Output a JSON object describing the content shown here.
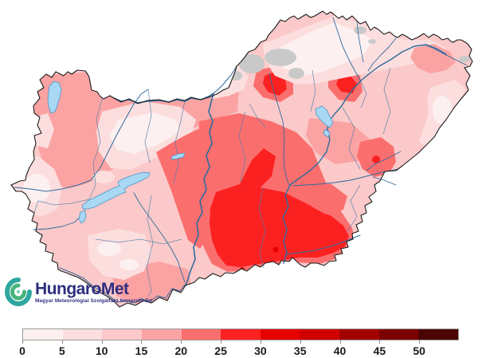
{
  "figure": {
    "description": "Hungary meteorological heat map"
  },
  "logo": {
    "title": "HungaroMet",
    "subtitle": "Magyar Meteorológiai Szolgáltató Nonprofit Zrt.",
    "title_color": "#2e2e80",
    "icon": "cyclone-spiral-icon",
    "icon_colors": [
      "#2fa7a0",
      "#49b37c",
      "#7fd0c2"
    ]
  },
  "legend": {
    "axis_min": 0,
    "axis_max": 50,
    "tick_step": 5,
    "ticks": [
      "0",
      "5",
      "10",
      "15",
      "20",
      "25",
      "30",
      "35",
      "40",
      "45",
      "50"
    ],
    "segments": [
      {
        "range": "0-5",
        "color": "#fdf0f0"
      },
      {
        "range": "5-10",
        "color": "#fcdede"
      },
      {
        "range": "10-15",
        "color": "#fbc9c9"
      },
      {
        "range": "15-20",
        "color": "#fba3a3"
      },
      {
        "range": "20-25",
        "color": "#fb6e6e"
      },
      {
        "range": "25-30",
        "color": "#fb2121"
      },
      {
        "range": "30-35",
        "color": "#e80000"
      },
      {
        "range": "35-40",
        "color": "#d00000"
      },
      {
        "range": "40-45",
        "color": "#a30000"
      },
      {
        "range": "45-50",
        "color": "#7c0101"
      },
      {
        "range": "50+",
        "color": "#4b0505"
      }
    ]
  },
  "map": {
    "region": "Hungary",
    "palette": {
      "v0": "#fdf0f0",
      "v1": "#fcdede",
      "v2": "#fbc9c9",
      "v3": "#fba3a3",
      "v4": "#fb6e6e",
      "v5": "#fb2121",
      "v6": "#e80000",
      "v7": "#d00000",
      "v8": "#a30000",
      "v9": "#7c0101",
      "v10": "#4b0505",
      "gray": "#c9c9c9"
    },
    "water_fill": "#a8d8f4",
    "water_stroke": "#4a94c8",
    "river_color": "#2e6b9e",
    "county_line_color": "#4d7fae",
    "border_color": "#1c1c1c"
  }
}
